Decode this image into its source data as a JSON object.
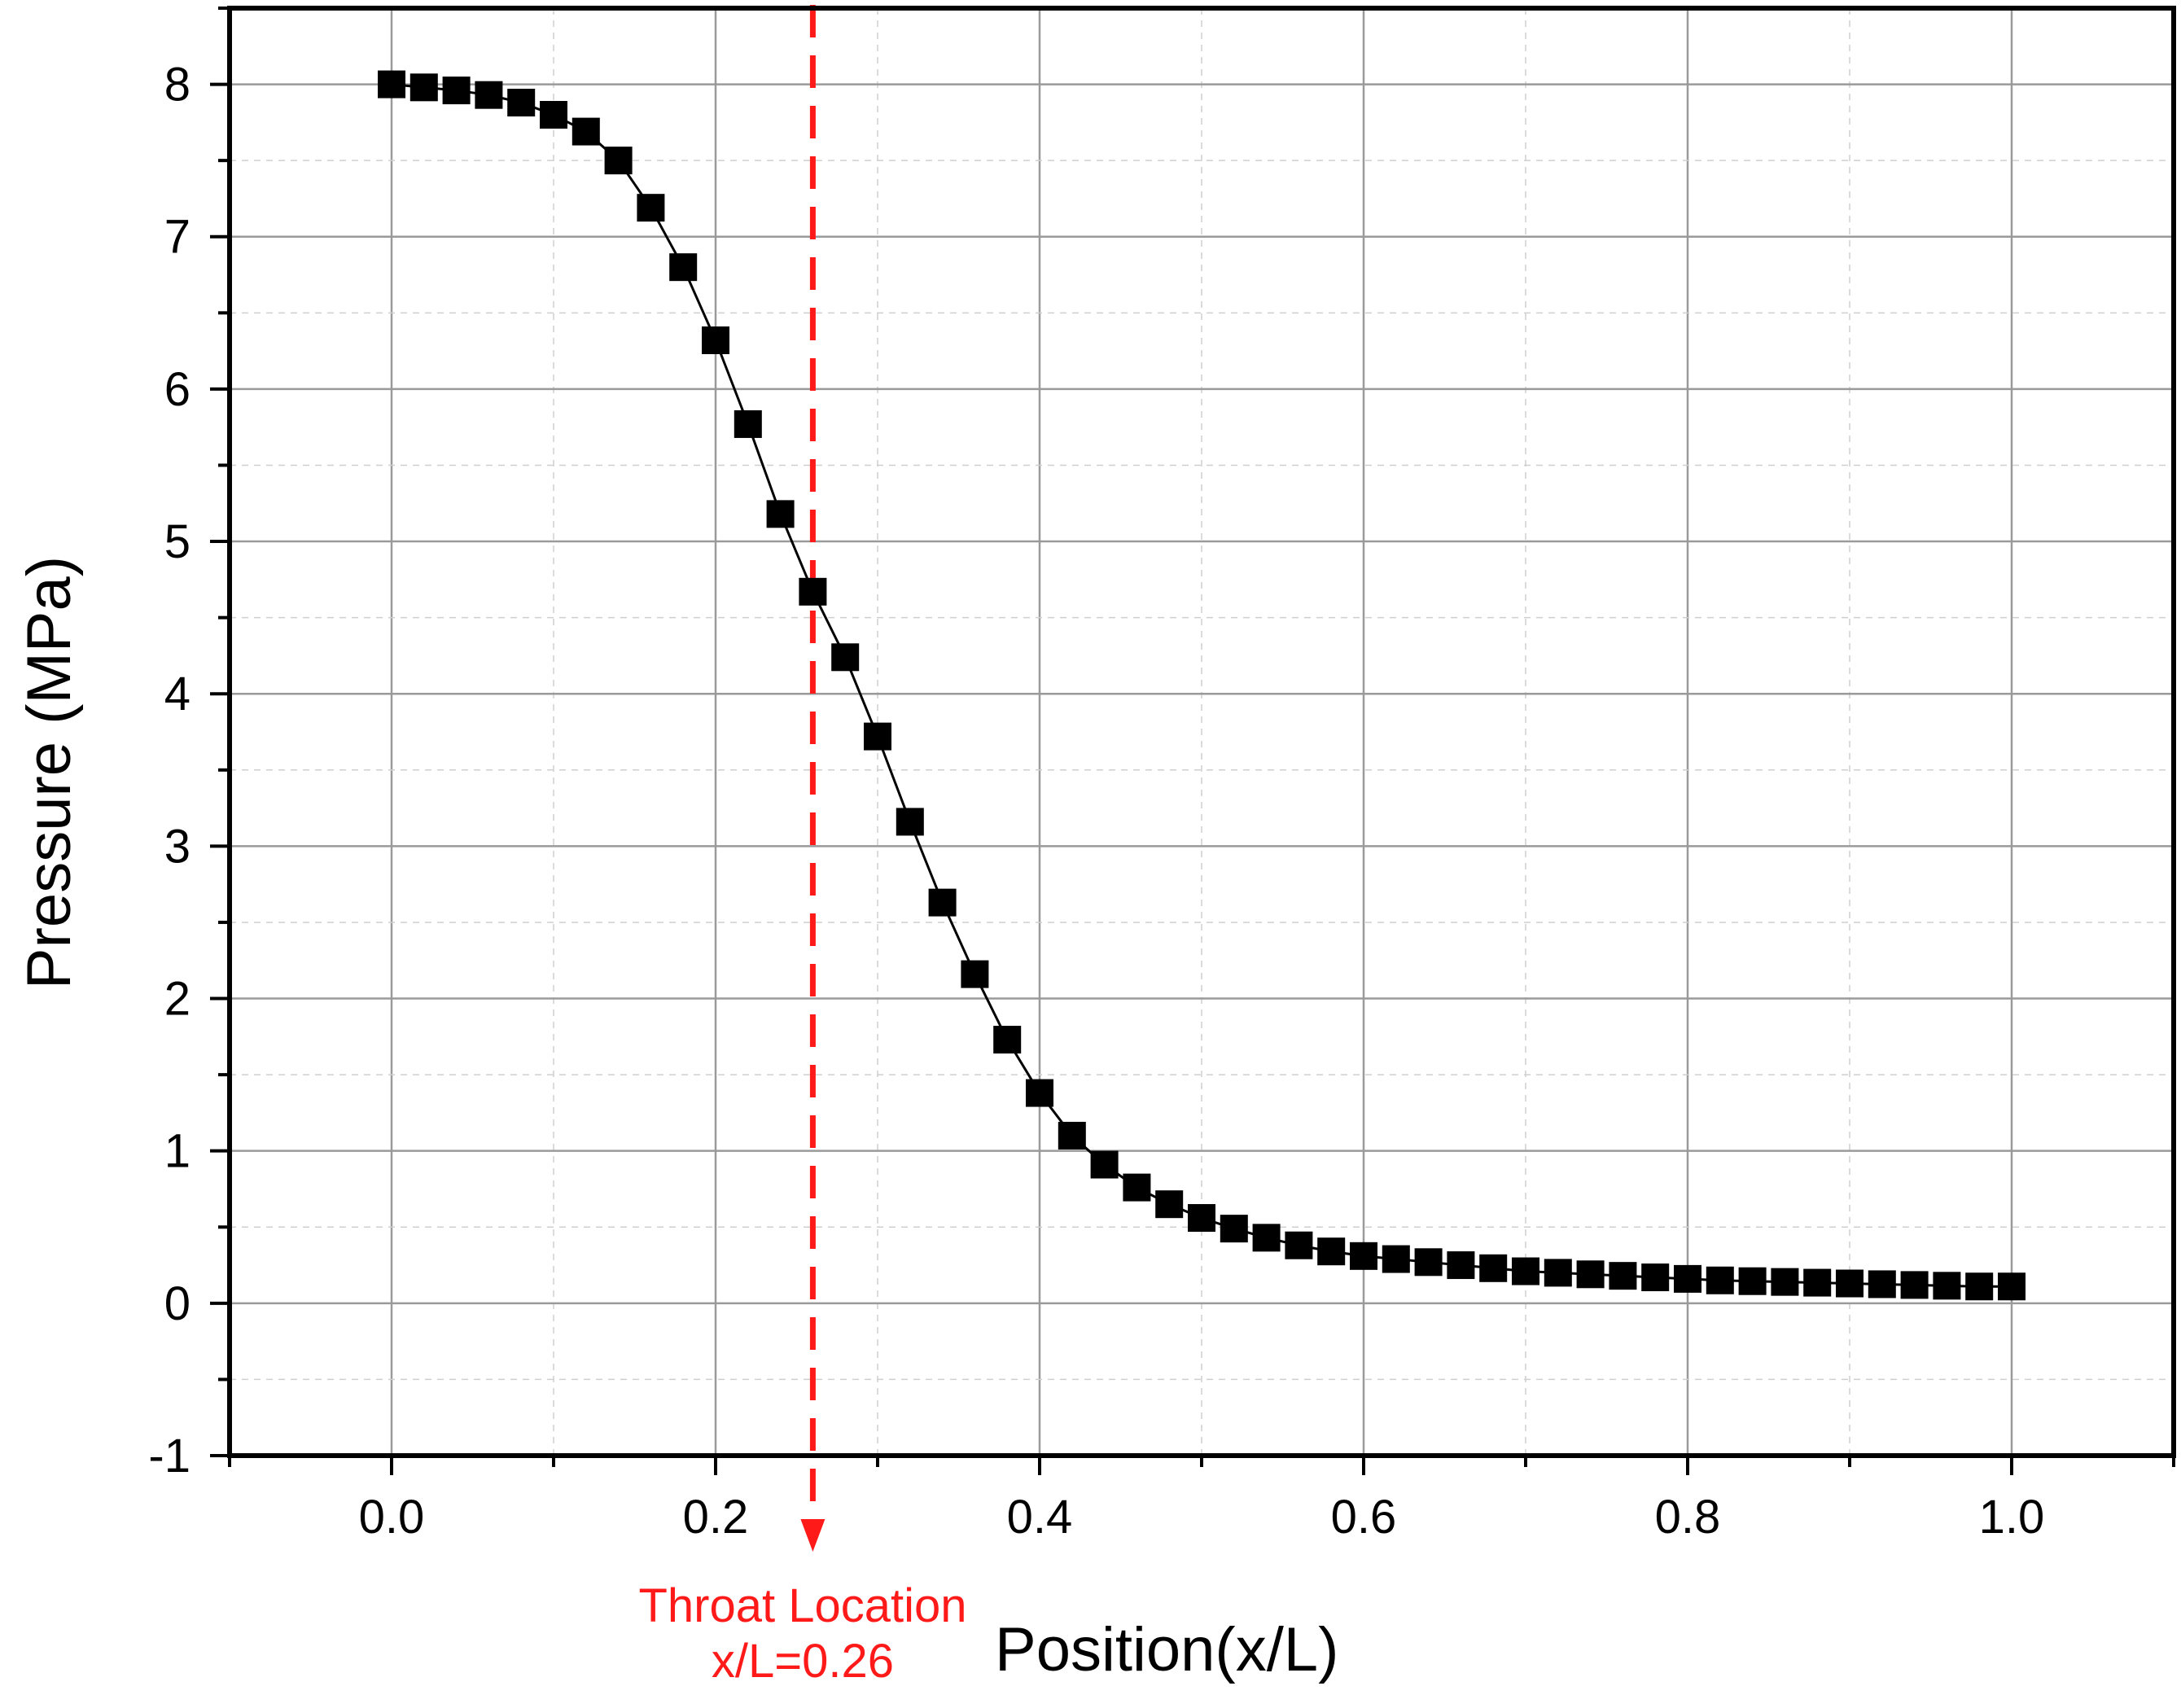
{
  "chart_data": {
    "type": "line",
    "title": "",
    "xlabel": "Position(x/L)",
    "ylabel": "Pressure (MPa)",
    "xlim": [
      -0.1,
      1.1
    ],
    "ylim": [
      -1,
      8.5
    ],
    "x_ticks": [
      "0.0",
      "0.2",
      "0.4",
      "0.6",
      "0.8",
      "1.0"
    ],
    "y_ticks": [
      "-1",
      "0",
      "1",
      "2",
      "3",
      "4",
      "5",
      "6",
      "7",
      "8"
    ],
    "grid": true,
    "legend": "none",
    "series": [
      {
        "marker": "square",
        "color": "#000000",
        "x": [
          0.0,
          0.02,
          0.04,
          0.06,
          0.08,
          0.1,
          0.12,
          0.14,
          0.16,
          0.18,
          0.2,
          0.22,
          0.24,
          0.26,
          0.28,
          0.3,
          0.32,
          0.34,
          0.36,
          0.38,
          0.4,
          0.42,
          0.44,
          0.46,
          0.48,
          0.5,
          0.52,
          0.54,
          0.56,
          0.58,
          0.6,
          0.62,
          0.64,
          0.66,
          0.68,
          0.7,
          0.72,
          0.74,
          0.76,
          0.78,
          0.8,
          0.82,
          0.84,
          0.86,
          0.88,
          0.9,
          0.92,
          0.94,
          0.96,
          0.98,
          1.0
        ],
        "y": [
          8.0,
          7.98,
          7.96,
          7.93,
          7.88,
          7.8,
          7.69,
          7.5,
          7.19,
          6.8,
          6.32,
          5.77,
          5.18,
          4.67,
          4.24,
          3.72,
          3.16,
          2.63,
          2.16,
          1.73,
          1.38,
          1.1,
          0.91,
          0.76,
          0.65,
          0.56,
          0.49,
          0.43,
          0.38,
          0.34,
          0.31,
          0.29,
          0.27,
          0.25,
          0.23,
          0.21,
          0.2,
          0.19,
          0.18,
          0.17,
          0.16,
          0.15,
          0.145,
          0.14,
          0.135,
          0.13,
          0.125,
          0.12,
          0.115,
          0.11,
          0.11
        ]
      }
    ],
    "annotations": [
      {
        "x": 0.26,
        "style": "dashed-vertical-line",
        "color": "#ff1a1a",
        "lines": [
          "Throat Location",
          "x/L=0.26"
        ]
      }
    ]
  }
}
